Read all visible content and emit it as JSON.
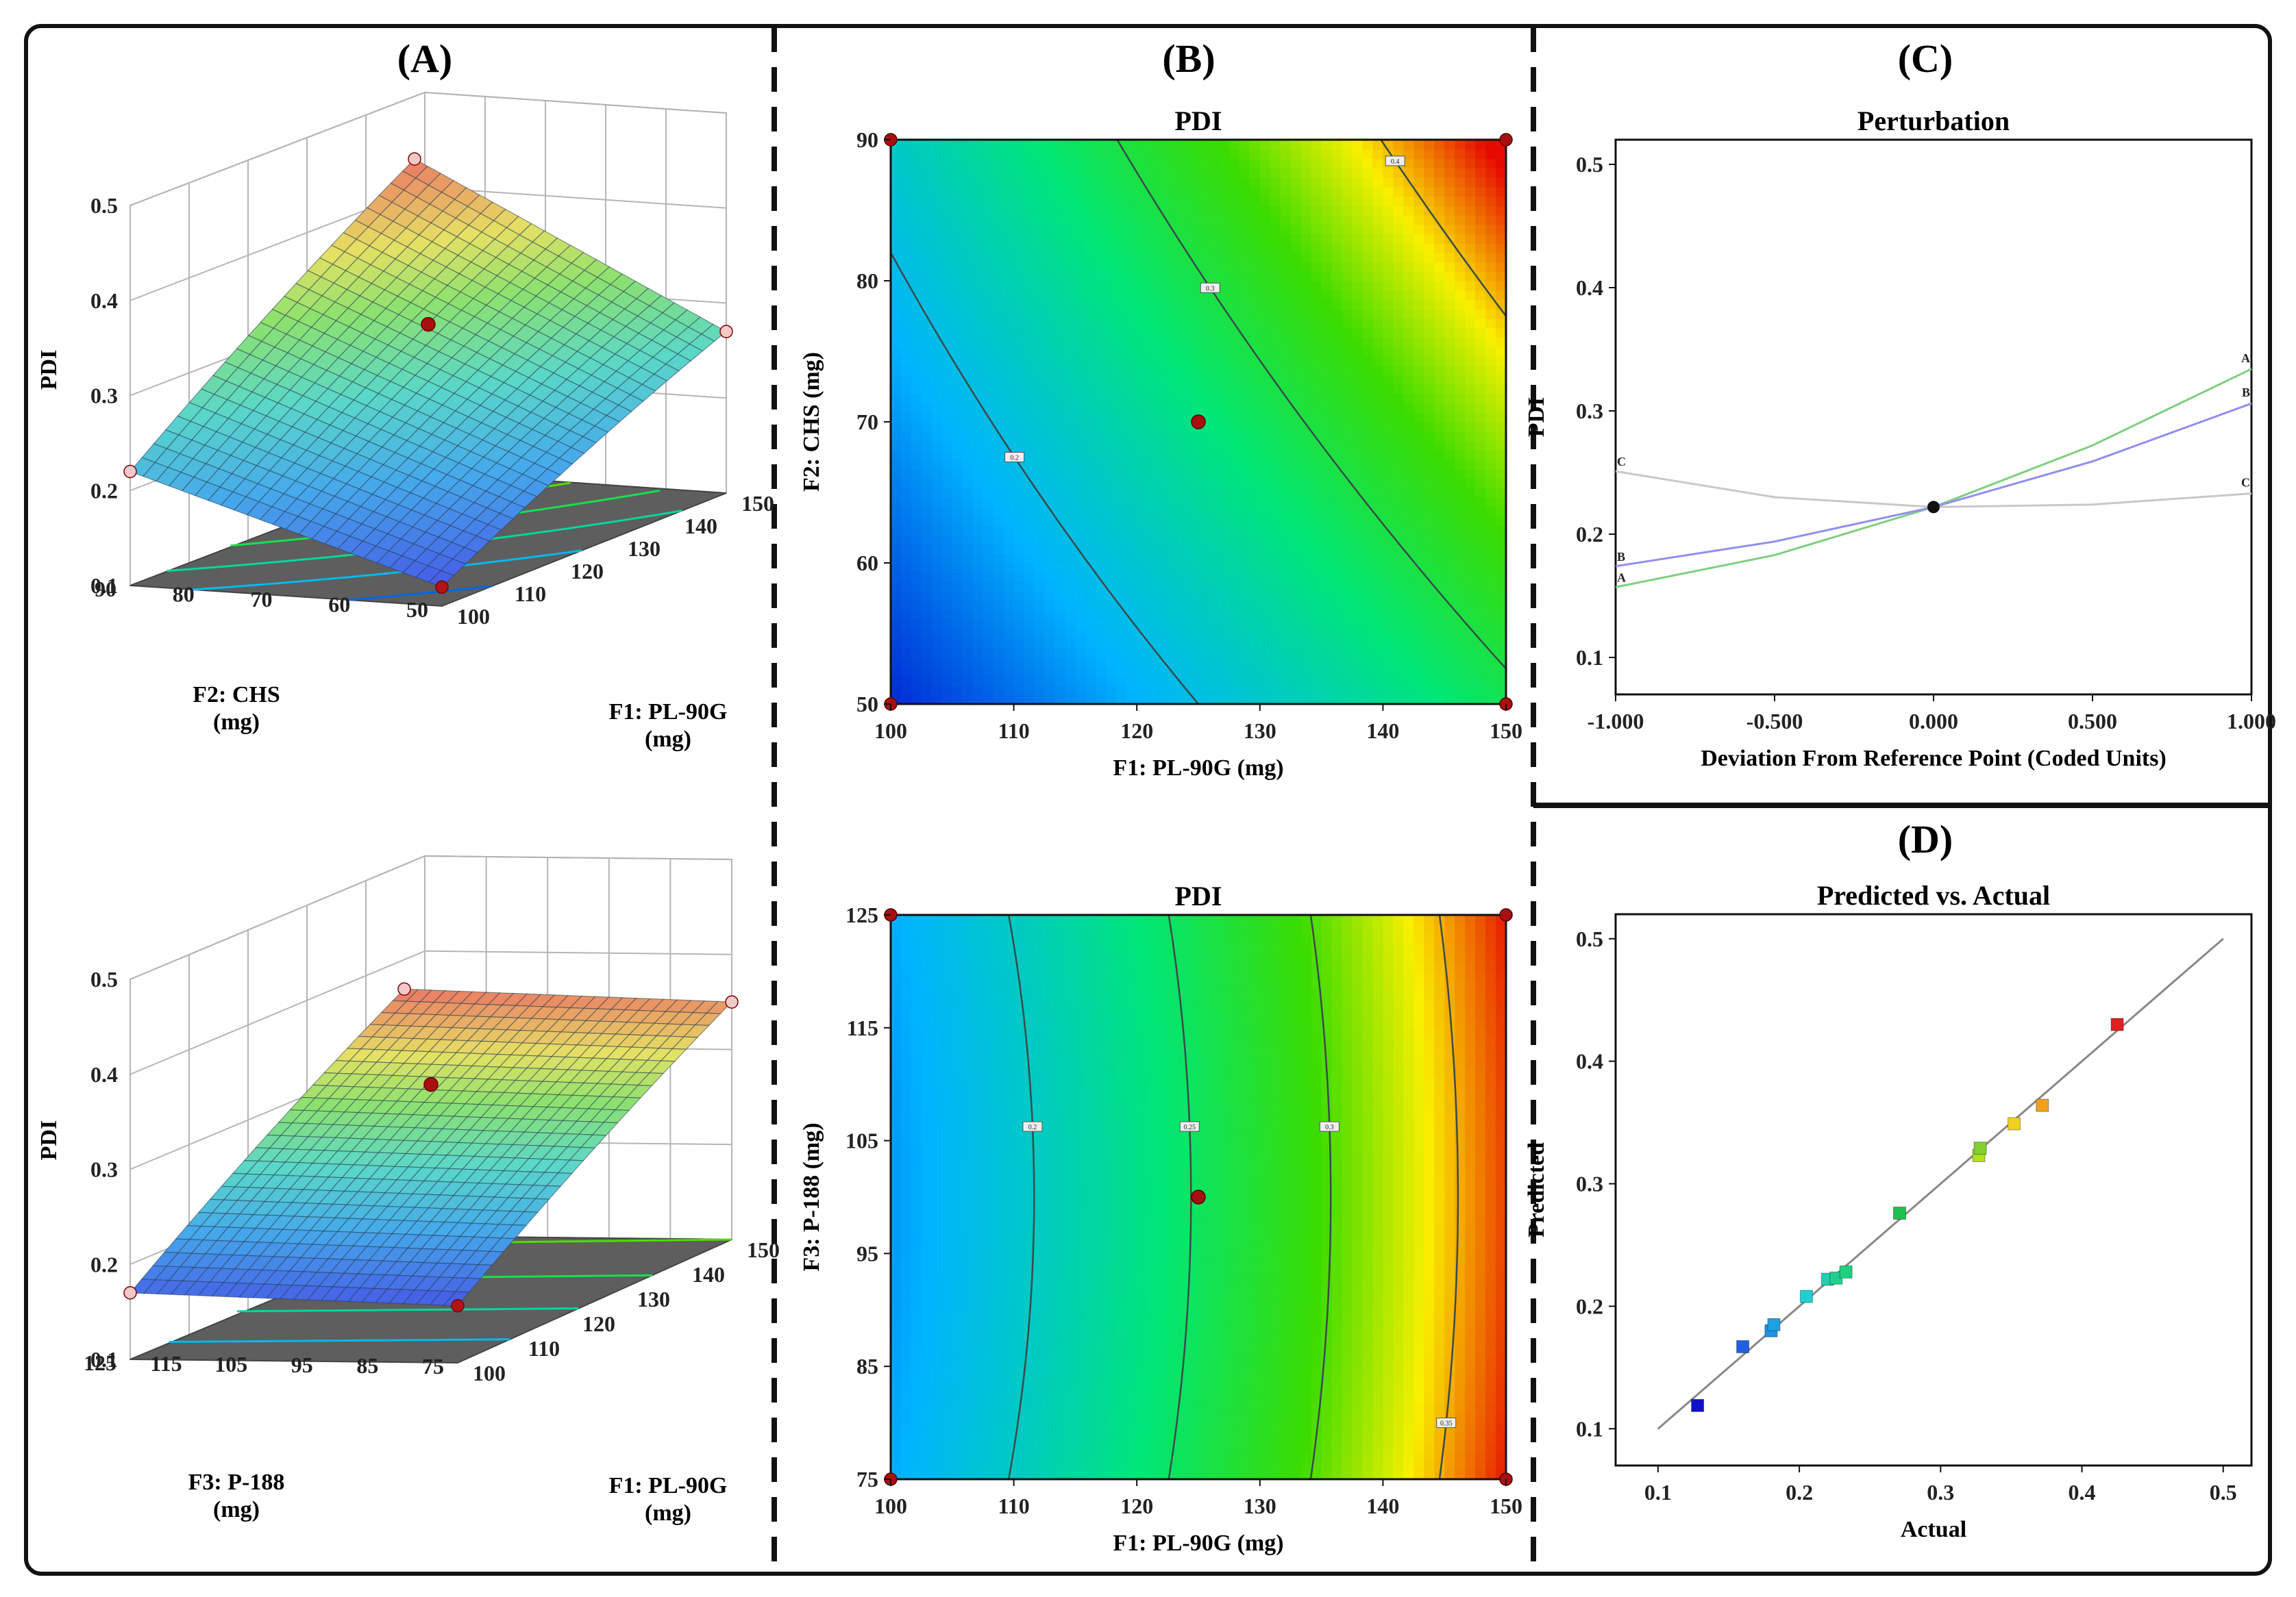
{
  "figure": {
    "panels": [
      {
        "label": "(A)"
      },
      {
        "label": "(B)"
      },
      {
        "label": "(C)"
      },
      {
        "label": "(D)"
      }
    ]
  },
  "chart_data": [
    {
      "id": "A_top",
      "type": "surface",
      "panel": "(A)",
      "title": "",
      "zlabel": "PDI",
      "xlabel": "F1: PL-90G\n(mg)",
      "ylabel": "F2: CHS\n(mg)",
      "z_ticks": [
        "0.1",
        "0.2",
        "0.3",
        "0.4",
        "0.5"
      ],
      "x_ticks": [
        "100",
        "110",
        "120",
        "130",
        "140",
        "150"
      ],
      "y_ticks": [
        "50",
        "60",
        "70",
        "80",
        "90"
      ],
      "xlim": [
        100,
        150
      ],
      "ylim": [
        50,
        90
      ],
      "zlim": [
        0.1,
        0.5
      ],
      "corner_values": {
        "x100_y50": 0.12,
        "x150_y50": 0.27,
        "x100_y90": 0.22,
        "x150_y90": 0.43
      },
      "design_point": {
        "x": 125,
        "y": 70,
        "z": 0.22
      }
    },
    {
      "id": "A_bottom",
      "type": "surface",
      "panel": "(A)",
      "title": "",
      "zlabel": "PDI",
      "xlabel": "F1: PL-90G\n(mg)",
      "ylabel": "F3: P-188\n(mg)",
      "z_ticks": [
        "0.1",
        "0.2",
        "0.3",
        "0.4",
        "0.5"
      ],
      "x_ticks": [
        "100",
        "110",
        "120",
        "130",
        "140",
        "150"
      ],
      "y_ticks": [
        "75",
        "85",
        "95",
        "105",
        "115",
        "125"
      ],
      "xlim": [
        100,
        150
      ],
      "ylim": [
        75,
        125
      ],
      "zlim": [
        0.1,
        0.5
      ],
      "corner_values": {
        "x100_y75": 0.16,
        "x150_y75": 0.35,
        "x100_y125": 0.17,
        "x150_y125": 0.36
      },
      "design_point": {
        "x": 125,
        "y": 100,
        "z": 0.22
      }
    },
    {
      "id": "B_top",
      "type": "contour",
      "panel": "(B)",
      "title": "PDI",
      "xlabel": "F1: PL-90G (mg)",
      "ylabel": "F2: CHS (mg)",
      "x_ticks": [
        "100",
        "110",
        "120",
        "130",
        "140",
        "150"
      ],
      "y_ticks": [
        "50",
        "60",
        "70",
        "80",
        "90"
      ],
      "xlim": [
        100,
        150
      ],
      "ylim": [
        50,
        90
      ],
      "contour_levels": [
        0.2,
        0.3,
        0.4
      ],
      "contour_labels": [
        "0.2",
        "0.3",
        "0.4"
      ],
      "center_point": {
        "x": 125,
        "y": 70
      },
      "design_points": [
        {
          "x": 100,
          "y": 50
        },
        {
          "x": 150,
          "y": 50
        },
        {
          "x": 100,
          "y": 90
        },
        {
          "x": 150,
          "y": 90
        }
      ]
    },
    {
      "id": "B_bottom",
      "type": "contour",
      "panel": "(B)",
      "title": "PDI",
      "xlabel": "F1: PL-90G (mg)",
      "ylabel": "F3: P-188 (mg)",
      "x_ticks": [
        "100",
        "110",
        "120",
        "130",
        "140",
        "150"
      ],
      "y_ticks": [
        "75",
        "85",
        "95",
        "105",
        "115",
        "125"
      ],
      "xlim": [
        100,
        150
      ],
      "ylim": [
        75,
        125
      ],
      "contour_levels": [
        0.2,
        0.25,
        0.3,
        0.35
      ],
      "contour_labels": [
        "0.2",
        "0.25",
        "0.3",
        "0.35"
      ],
      "center_point": {
        "x": 125,
        "y": 100
      },
      "design_points": [
        {
          "x": 100,
          "y": 75
        },
        {
          "x": 150,
          "y": 75
        },
        {
          "x": 100,
          "y": 125
        },
        {
          "x": 150,
          "y": 125
        }
      ]
    },
    {
      "id": "C",
      "type": "line",
      "panel": "(C)",
      "title": "Perturbation",
      "xlabel": "Deviation From Reference Point (Coded Units)",
      "ylabel": "PDI",
      "x_ticks": [
        "-1.000",
        "-0.500",
        "0.000",
        "0.500",
        "1.000"
      ],
      "y_ticks": [
        "0.1",
        "0.2",
        "0.3",
        "0.4",
        "0.5"
      ],
      "xlim": [
        -1.0,
        1.0
      ],
      "ylim": [
        0.07,
        0.52
      ],
      "reference_point": {
        "x": 0.0,
        "y": 0.222
      },
      "series": [
        {
          "name": "A",
          "color": "#7fcf7f",
          "x": [
            -1.0,
            -0.5,
            0.0,
            0.5,
            1.0
          ],
          "y": [
            0.157,
            0.183,
            0.222,
            0.272,
            0.334
          ]
        },
        {
          "name": "B",
          "color": "#8f8fef",
          "x": [
            -1.0,
            -0.5,
            0.0,
            0.5,
            1.0
          ],
          "y": [
            0.174,
            0.194,
            0.222,
            0.259,
            0.306
          ]
        },
        {
          "name": "C",
          "color": "#c8c8c8",
          "x": [
            -1.0,
            -0.5,
            0.0,
            0.5,
            1.0
          ],
          "y": [
            0.251,
            0.23,
            0.222,
            0.224,
            0.233
          ]
        }
      ]
    },
    {
      "id": "D",
      "type": "scatter",
      "panel": "(D)",
      "title": "Predicted vs. Actual",
      "xlabel": "Actual",
      "ylabel": "Predicted",
      "x_ticks": [
        "0.1",
        "0.2",
        "0.3",
        "0.4",
        "0.5"
      ],
      "y_ticks": [
        "0.1",
        "0.2",
        "0.3",
        "0.4",
        "0.5"
      ],
      "xlim": [
        0.07,
        0.52
      ],
      "ylim": [
        0.07,
        0.52
      ],
      "reference_line": {
        "x": [
          0.1,
          0.5
        ],
        "y": [
          0.1,
          0.5
        ]
      },
      "points": [
        {
          "x": 0.128,
          "y": 0.119,
          "color": "#1010cc"
        },
        {
          "x": 0.16,
          "y": 0.167,
          "color": "#2060e0"
        },
        {
          "x": 0.18,
          "y": 0.18,
          "color": "#2090e0"
        },
        {
          "x": 0.182,
          "y": 0.185,
          "color": "#20a0e0"
        },
        {
          "x": 0.205,
          "y": 0.208,
          "color": "#20d0d0"
        },
        {
          "x": 0.22,
          "y": 0.222,
          "color": "#20d0b0"
        },
        {
          "x": 0.226,
          "y": 0.223,
          "color": "#20d090"
        },
        {
          "x": 0.233,
          "y": 0.228,
          "color": "#20d080"
        },
        {
          "x": 0.271,
          "y": 0.276,
          "color": "#20c050"
        },
        {
          "x": 0.327,
          "y": 0.323,
          "color": "#b0e020"
        },
        {
          "x": 0.328,
          "y": 0.329,
          "color": "#80d030"
        },
        {
          "x": 0.352,
          "y": 0.349,
          "color": "#f0d020"
        },
        {
          "x": 0.372,
          "y": 0.364,
          "color": "#f0a020"
        },
        {
          "x": 0.425,
          "y": 0.43,
          "color": "#e02020"
        }
      ]
    }
  ]
}
